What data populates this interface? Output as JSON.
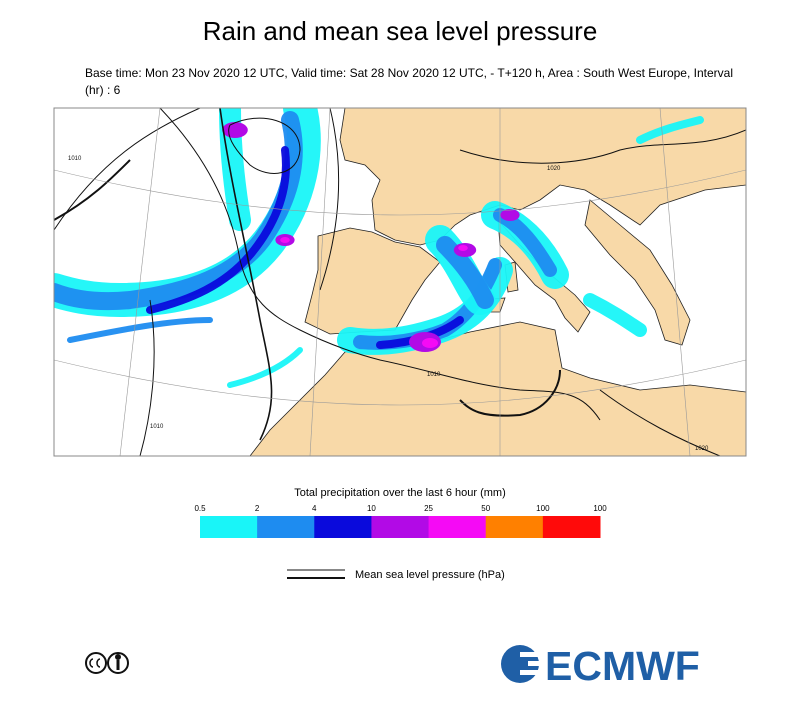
{
  "header": {
    "title": "Rain and mean sea level pressure",
    "subtitle": "Base time: Mon 23 Nov 2020 12 UTC, Valid time: Sat 28 Nov 2020 12 UTC, - T+120 h, Area : South West Europe, Interval (hr) : 6"
  },
  "map": {
    "isobar_labels": [
      1010,
      1020,
      1010,
      1020,
      1010
    ]
  },
  "legend": {
    "precip_title": "Total precipitation over the last 6 hour (mm)",
    "precip_ticks": [
      0.5,
      2,
      4,
      10,
      25,
      50,
      100,
      100
    ],
    "colors": [
      "#19f5f8",
      "#1e8cf0",
      "#0a0adc",
      "#b20ae6",
      "#f50af5",
      "#ff8000",
      "#ff0a0a"
    ],
    "pressure_label": "Mean sea level pressure (hPa)"
  },
  "logo": {
    "text": "ECMWF"
  }
}
